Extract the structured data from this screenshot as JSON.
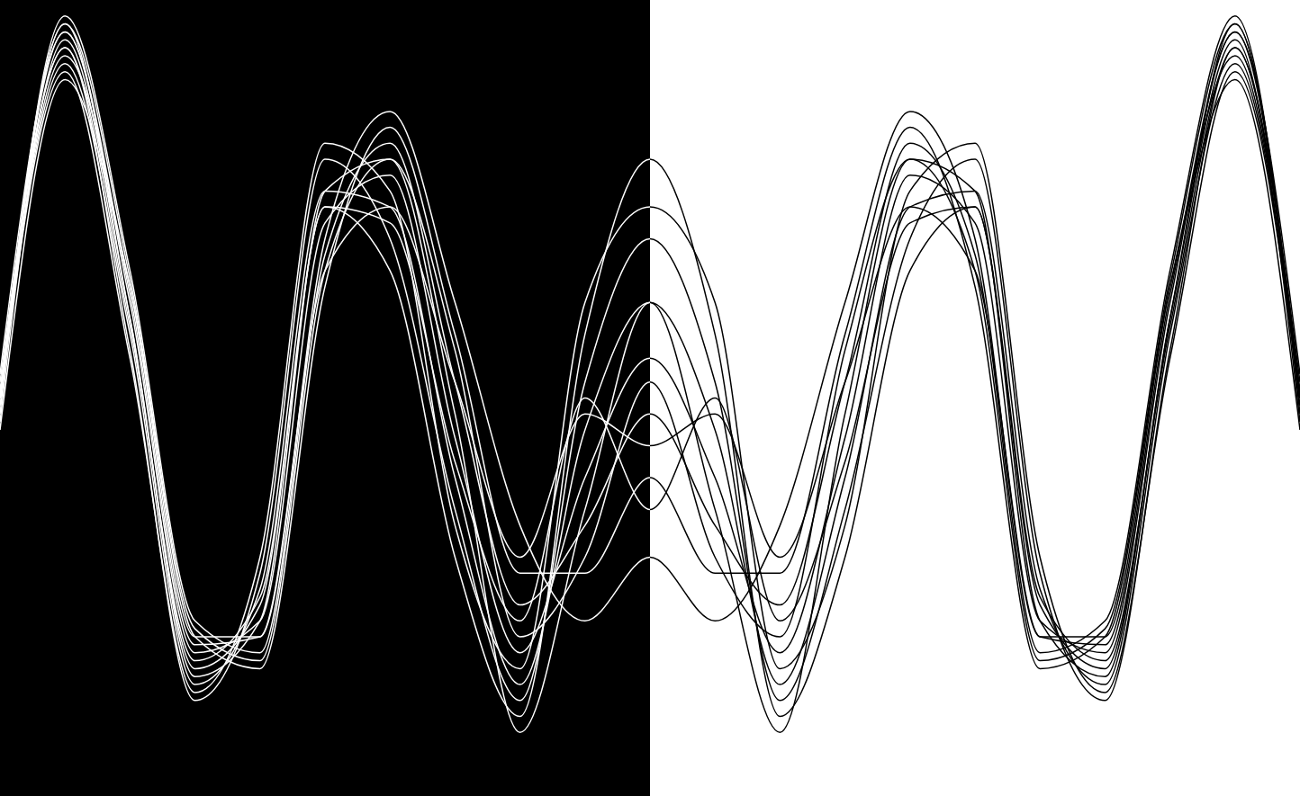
{
  "chart_data": {
    "type": "line",
    "x": [
      0,
      5,
      10,
      15,
      20,
      25,
      30,
      35,
      40,
      45,
      50,
      55,
      60,
      65,
      70,
      75,
      80,
      85,
      90,
      95,
      100
    ],
    "series": [
      {
        "values": [
          50,
          96,
          62,
          18,
          22,
          72,
          78,
          45,
          18,
          40,
          55,
          40,
          18,
          45,
          78,
          72,
          22,
          18,
          62,
          96,
          50
        ]
      },
      {
        "values": [
          50,
          92,
          58,
          14,
          26,
          76,
          74,
          40,
          14,
          46,
          62,
          46,
          14,
          40,
          74,
          76,
          26,
          14,
          58,
          92,
          50
        ]
      },
      {
        "values": [
          48,
          98,
          66,
          22,
          18,
          68,
          82,
          52,
          24,
          34,
          48,
          34,
          24,
          52,
          82,
          68,
          18,
          22,
          66,
          98,
          48
        ]
      },
      {
        "values": [
          52,
          94,
          56,
          12,
          28,
          80,
          70,
          36,
          12,
          52,
          70,
          52,
          12,
          36,
          70,
          80,
          28,
          12,
          56,
          94,
          52
        ]
      },
      {
        "values": [
          46,
          90,
          64,
          20,
          16,
          64,
          84,
          58,
          28,
          28,
          40,
          28,
          28,
          58,
          84,
          64,
          16,
          20,
          64,
          90,
          46
        ]
      },
      {
        "values": [
          50,
          97,
          60,
          16,
          24,
          74,
          66,
          30,
          10,
          58,
          80,
          58,
          10,
          30,
          66,
          74,
          24,
          16,
          60,
          97,
          50
        ]
      },
      {
        "values": [
          50,
          93,
          64,
          20,
          20,
          70,
          86,
          62,
          34,
          22,
          30,
          22,
          34,
          62,
          86,
          70,
          20,
          20,
          64,
          93,
          50
        ]
      },
      {
        "values": [
          47,
          95,
          60,
          15,
          22,
          76,
          80,
          48,
          8,
          36,
          62,
          36,
          8,
          48,
          80,
          76,
          22,
          15,
          60,
          95,
          47
        ]
      },
      {
        "values": [
          53,
          96,
          63,
          19,
          20,
          66,
          74,
          52,
          30,
          48,
          44,
          48,
          30,
          52,
          74,
          66,
          20,
          19,
          63,
          96,
          53
        ]
      },
      {
        "values": [
          50,
          91,
          55,
          13,
          30,
          82,
          76,
          34,
          16,
          62,
          74,
          62,
          16,
          34,
          76,
          82,
          30,
          13,
          55,
          91,
          50
        ]
      },
      {
        "values": [
          49,
          97,
          65,
          21,
          17,
          66,
          80,
          56,
          20,
          30,
          52,
          30,
          20,
          56,
          80,
          66,
          17,
          21,
          65,
          97,
          49
        ]
      },
      {
        "values": [
          51,
          94,
          59,
          17,
          25,
          74,
          72,
          42,
          22,
          50,
          36,
          50,
          22,
          42,
          72,
          74,
          25,
          17,
          59,
          94,
          51
        ]
      }
    ],
    "xlim": [
      0,
      100
    ],
    "ylim": [
      0,
      100
    ],
    "tick_labels": false,
    "grid": false
  }
}
